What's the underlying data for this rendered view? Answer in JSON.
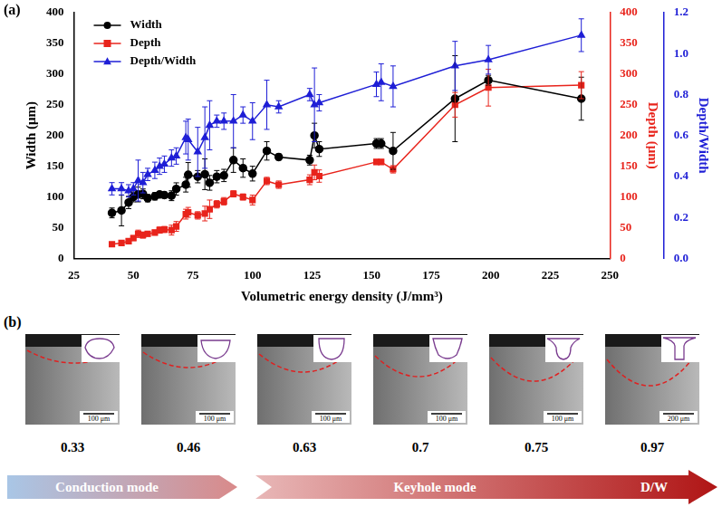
{
  "chart_data": {
    "type": "line",
    "annotations": [
      "(a)"
    ],
    "x_label": "Volumetric energy density (J/mm³)",
    "y_label": "Width (μm)",
    "y2_label": "Depth (μm)",
    "y3_label": "Depth/Width",
    "x": [
      41,
      45,
      48,
      50,
      52,
      54,
      56,
      59,
      61,
      63,
      66,
      68,
      72,
      73,
      77,
      80,
      82,
      85,
      88,
      92,
      96,
      100,
      106,
      111,
      124,
      126,
      128,
      152,
      154,
      159,
      185,
      199,
      238
    ],
    "series": [
      {
        "name": "Width",
        "color": "#000000",
        "marker": "circle",
        "values": [
          74,
          78,
          91,
          100,
          104,
          105,
          98,
          101,
          104,
          103,
          102,
          113,
          120,
          136,
          133,
          137,
          123,
          133,
          135,
          160,
          147,
          138,
          175,
          165,
          160,
          200,
          178,
          187,
          187,
          175,
          260,
          290,
          260
        ],
        "errors": [
          8,
          25,
          10,
          8,
          12,
          8,
          6,
          6,
          5,
          5,
          8,
          10,
          12,
          20,
          10,
          25,
          12,
          10,
          10,
          20,
          15,
          12,
          15,
          5,
          8,
          20,
          12,
          8,
          8,
          30,
          70,
          8,
          35
        ]
      },
      {
        "name": "Depth",
        "color": "#e8241c",
        "marker": "square",
        "axis": "y2",
        "values": [
          23,
          25,
          28,
          33,
          40,
          38,
          40,
          42,
          46,
          47,
          46,
          52,
          72,
          75,
          70,
          73,
          80,
          88,
          93,
          105,
          100,
          95,
          126,
          120,
          128,
          140,
          134,
          157,
          157,
          145,
          250,
          278,
          282
        ],
        "errors": [
          3,
          3,
          3,
          4,
          6,
          5,
          4,
          4,
          5,
          5,
          8,
          8,
          8,
          8,
          6,
          12,
          15,
          6,
          6,
          5,
          5,
          8,
          6,
          6,
          8,
          12,
          10,
          4,
          4,
          6,
          20,
          30,
          22
        ]
      },
      {
        "name": "Depth/Width",
        "color": "#1f1fd6",
        "marker": "triangle",
        "axis": "y3",
        "values": [
          0.34,
          0.34,
          0.33,
          0.34,
          0.38,
          0.37,
          0.41,
          0.43,
          0.45,
          0.46,
          0.49,
          0.5,
          0.59,
          0.58,
          0.52,
          0.59,
          0.65,
          0.67,
          0.67,
          0.67,
          0.7,
          0.67,
          0.75,
          0.74,
          0.8,
          0.75,
          0.76,
          0.85,
          0.86,
          0.84,
          0.94,
          0.97,
          1.09
        ],
        "errors": [
          0.03,
          0.03,
          0.03,
          0.03,
          0.1,
          0.05,
          0.03,
          0.04,
          0.04,
          0.04,
          0.04,
          0.04,
          0.08,
          0.1,
          0.12,
          0.15,
          0.12,
          0.03,
          0.04,
          0.13,
          0.04,
          0.09,
          0.12,
          0.03,
          0.03,
          0.18,
          0.04,
          0.06,
          0.09,
          0.1,
          0.12,
          0.07,
          0.08
        ]
      }
    ],
    "xlim": [
      25,
      250
    ],
    "xticks": [
      25,
      50,
      75,
      100,
      125,
      150,
      175,
      200,
      225,
      250
    ],
    "ylim": [
      0,
      400
    ],
    "yticks": [
      0,
      50,
      100,
      150,
      200,
      250,
      300,
      350,
      400
    ],
    "y2lim": [
      0,
      400
    ],
    "y2ticks": [
      0,
      50,
      100,
      150,
      200,
      250,
      300,
      350,
      400
    ],
    "y3lim": [
      0,
      1.2
    ],
    "y3ticks": [
      {
        "value": 0,
        "label": "0.0"
      },
      0.2,
      0.4,
      0.6,
      0.8,
      {
        "value": 1,
        "label": "1.0"
      },
      1.2
    ],
    "grid": false,
    "legend": "upper left"
  },
  "panel_b": {
    "label": "(b)",
    "images": [
      {
        "dw": 0.33,
        "scale_bar": "100 μm"
      },
      {
        "dw": 0.46,
        "scale_bar": "100 μm"
      },
      {
        "dw": 0.63,
        "scale_bar": "100 μm"
      },
      {
        "dw": 0.7,
        "scale_bar": "100 μm"
      },
      {
        "dw": 0.75,
        "scale_bar": "100 μm"
      },
      {
        "dw": 0.97,
        "scale_bar": "200 μm"
      }
    ],
    "arrows": [
      {
        "labels": [
          "Conduction mode"
        ]
      },
      {
        "labels": [
          "Keyhole mode",
          "D/W"
        ]
      }
    ]
  }
}
